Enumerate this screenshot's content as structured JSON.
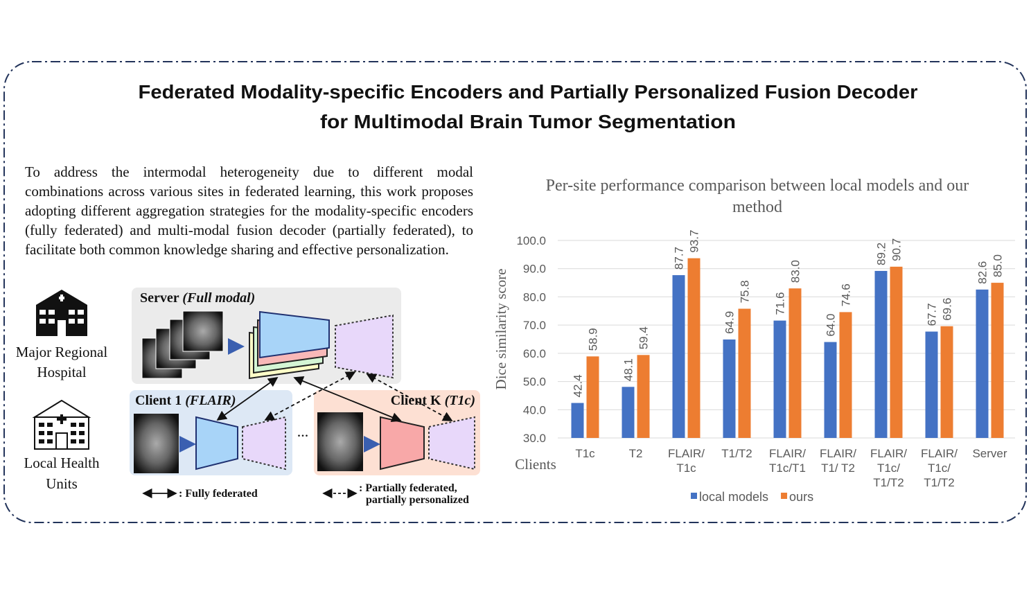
{
  "header": {
    "title_lines": [
      "Federated Modality-specific Encoders and Partially Personalized Fusion Decoder",
      "for Multimodal Brain Tumor Segmentation"
    ]
  },
  "summary": "To address the intermodal heterogeneity due to different modal combinations across various sites in federated learning, this work proposes adopting different aggregation strategies for the modality-specific encoders (fully federated) and multi-modal fusion decoder (partially federated), to facilitate both common knowledge sharing and effective personalization.",
  "diagram": {
    "sites": [
      [
        "Major Regional",
        "Hospital"
      ],
      [
        "Local Health",
        "Units"
      ]
    ],
    "server": {
      "label": "Server",
      "mode": "(Full modal)"
    },
    "client_1": {
      "label": "Client 1",
      "mode": "(FLAIR)"
    },
    "client_k": {
      "label": "Client K",
      "mode": "(T1c)"
    },
    "ellipsis": "...",
    "legend": {
      "fully": ": Fully federated",
      "partially": [
        ": Partially federated,",
        "partially personalized"
      ]
    }
  },
  "chart_data": {
    "type": "bar",
    "title": "Per-site performance comparison between local models and our method",
    "y_label": "Dice similarity score",
    "x_label": "Clients",
    "categories": [
      [
        "T1c"
      ],
      [
        "T2"
      ],
      [
        "FLAIR/",
        "T1c"
      ],
      [
        "T1/T2"
      ],
      [
        "FLAIR/",
        "T1c/T1"
      ],
      [
        "FLAIR/",
        "T1/ T2"
      ],
      [
        "FLAIR/",
        "T1c/",
        "T1/T2"
      ],
      [
        "FLAIR/",
        "T1c/",
        "T1/T2"
      ],
      [
        "Server"
      ]
    ],
    "series": [
      {
        "name": "local models",
        "color": "#4472c4",
        "values": [
          42.4,
          48.1,
          87.7,
          64.9,
          71.6,
          64,
          89.2,
          67.7,
          82.6
        ],
        "value_labels": [
          "42.4",
          "48.1",
          "87.7",
          "64.9",
          "71.6",
          "64.0",
          "89.2",
          "67.7",
          "82.6"
        ]
      },
      {
        "name": "ours",
        "color": "#ed7d31",
        "values": [
          58.9,
          59.4,
          93.7,
          75.8,
          83,
          74.6,
          90.7,
          69.6,
          85
        ],
        "value_labels": [
          "58.9",
          "59.4",
          "93.7",
          "75.8",
          "83.0",
          "74.6",
          "90.7",
          "69.6",
          "85.0"
        ]
      }
    ],
    "ylim": [
      30,
      100
    ],
    "yticks": [
      {
        "value": 30,
        "label": "30.0"
      },
      {
        "value": 40,
        "label": "40.0"
      },
      {
        "value": 50,
        "label": "50.0"
      },
      {
        "value": 60,
        "label": "60.0"
      },
      {
        "value": 70,
        "label": "70.0"
      },
      {
        "value": 80,
        "label": "80.0"
      },
      {
        "value": 90,
        "label": "90.0"
      },
      {
        "value": 100,
        "label": "100.0"
      }
    ],
    "grid": true,
    "legend": "bottom"
  }
}
